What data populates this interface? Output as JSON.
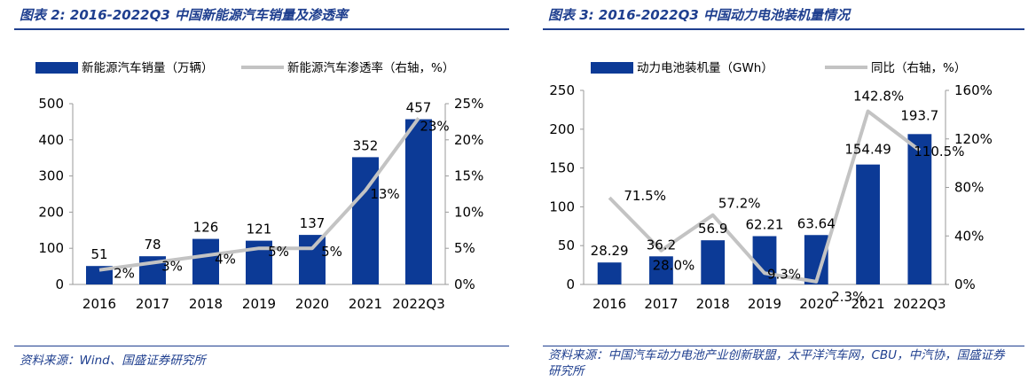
{
  "colors": {
    "bar": "#0c3a96",
    "line": "#c3c3c3",
    "title": "#1f3f8f"
  },
  "left": {
    "figure_title": "图表 2:  2016-2022Q3 中国新能源汽车销量及渗透率",
    "source": "资料来源：Wind、国盛证券研究所",
    "chart_data": {
      "type": "bar",
      "categories": [
        "2016",
        "2017",
        "2018",
        "2019",
        "2020",
        "2021",
        "2022Q3"
      ],
      "series": [
        {
          "name": "新能源汽车销量（万辆）",
          "type": "bar",
          "axis": "left",
          "values": [
            51,
            78,
            126,
            121,
            137,
            352,
            457
          ],
          "labels": [
            "51",
            "78",
            "126",
            "121",
            "137",
            "352",
            "457"
          ]
        },
        {
          "name": "新能源汽车渗透率（右轴，%）",
          "type": "line",
          "axis": "right",
          "values": [
            2,
            3,
            4,
            5,
            5,
            13,
            23
          ],
          "labels": [
            "2%",
            "3%",
            "4%",
            "5%",
            "5%",
            "13%",
            "23%"
          ]
        }
      ],
      "ylim": [
        0,
        500
      ],
      "yticks": [
        "0",
        "100",
        "200",
        "300",
        "400",
        "500"
      ],
      "y2lim": [
        0,
        25
      ],
      "y2ticks": [
        "0%",
        "5%",
        "10%",
        "15%",
        "20%",
        "25%"
      ],
      "legend": "top",
      "grid": false
    }
  },
  "right": {
    "figure_title": "图表 3:  2016-2022Q3 中国动力电池装机量情况",
    "source": "资料来源：中国汽车动力电池产业创新联盟，太平洋汽车网，CBU，中汽协，国盛证券研究所",
    "chart_data": {
      "type": "bar",
      "categories": [
        "2016",
        "2017",
        "2018",
        "2019",
        "2020",
        "2021",
        "2022Q3"
      ],
      "series": [
        {
          "name": "动力电池装机量（GWh）",
          "type": "bar",
          "axis": "left",
          "values": [
            28.29,
            36.2,
            56.9,
            62.21,
            63.64,
            154.49,
            193.7
          ],
          "labels": [
            "28.29",
            "36.2",
            "56.9",
            "62.21",
            "63.64",
            "154.49",
            "193.7"
          ]
        },
        {
          "name": "同比（右轴，%）",
          "type": "line",
          "axis": "right",
          "values": [
            71.5,
            28.0,
            57.2,
            9.3,
            2.3,
            142.8,
            110.5
          ],
          "labels": [
            "71.5%",
            "28.0%",
            "57.2%",
            "9.3%",
            "2.3%",
            "142.8%",
            "110.5%"
          ]
        }
      ],
      "ylim": [
        0,
        250
      ],
      "yticks": [
        "0",
        "50",
        "100",
        "150",
        "200",
        "250"
      ],
      "y2lim": [
        0,
        160
      ],
      "y2ticks": [
        "0%",
        "40%",
        "80%",
        "120%",
        "160%"
      ],
      "legend": "top",
      "grid": false
    }
  }
}
